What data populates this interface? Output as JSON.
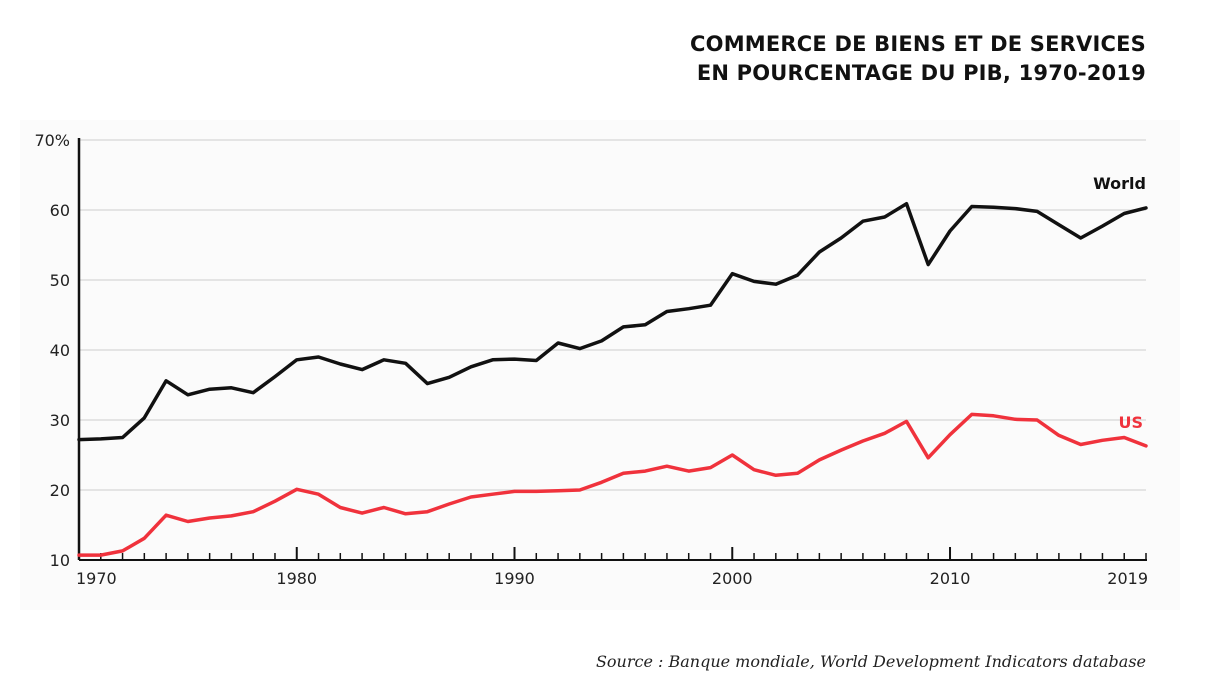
{
  "header": {
    "title_line1": "COMMERCE DE BIENS ET DE SERVICES",
    "title_line2": "EN POURCENTAGE DU PIB, 1970-2019"
  },
  "footer": {
    "source": "Source : Banque mondiale, World Development Indicators database"
  },
  "chart_data": {
    "type": "line",
    "title": "COMMERCE DE BIENS ET DE SERVICES EN POURCENTAGE DU PIB, 1970-2019",
    "xlabel": "",
    "ylabel": "",
    "xlim": [
      1970,
      2019
    ],
    "ylim": [
      10,
      70
    ],
    "grid": true,
    "x_tick_labels": [
      "1970",
      "1980",
      "1990",
      "2000",
      "2010",
      "2019"
    ],
    "x_ticks": [
      1970,
      1980,
      1990,
      2000,
      2010,
      2019
    ],
    "y_ticks": [
      10,
      20,
      30,
      40,
      50,
      60,
      70
    ],
    "y_tick_labels": [
      "10",
      "20",
      "30",
      "40",
      "50",
      "60",
      "70%"
    ],
    "x": [
      1970,
      1971,
      1972,
      1973,
      1974,
      1975,
      1976,
      1977,
      1978,
      1979,
      1980,
      1981,
      1982,
      1983,
      1984,
      1985,
      1986,
      1987,
      1988,
      1989,
      1990,
      1991,
      1992,
      1993,
      1994,
      1995,
      1996,
      1997,
      1998,
      1999,
      2000,
      2001,
      2002,
      2003,
      2004,
      2005,
      2006,
      2007,
      2008,
      2009,
      2010,
      2011,
      2012,
      2013,
      2014,
      2015,
      2016,
      2017,
      2018,
      2019
    ],
    "series": [
      {
        "name": "World",
        "color": "#111111",
        "values": [
          27.2,
          27.3,
          27.5,
          30.3,
          35.6,
          33.6,
          34.4,
          34.6,
          33.9,
          36.2,
          38.6,
          39.0,
          38.0,
          37.2,
          38.6,
          38.1,
          35.2,
          36.1,
          37.6,
          38.6,
          38.7,
          38.5,
          41.0,
          40.2,
          41.3,
          43.3,
          43.6,
          45.5,
          45.9,
          46.4,
          50.9,
          49.8,
          49.4,
          50.7,
          54.0,
          56.0,
          58.4,
          59.0,
          60.9,
          52.2,
          57.0,
          60.5,
          60.4,
          60.2,
          59.8,
          57.9,
          56.0,
          57.7,
          59.5,
          60.3
        ]
      },
      {
        "name": "US",
        "color": "#f0323c",
        "values": [
          10.7,
          10.7,
          11.3,
          13.1,
          16.4,
          15.5,
          16.0,
          16.3,
          16.9,
          18.4,
          20.1,
          19.4,
          17.5,
          16.7,
          17.5,
          16.6,
          16.9,
          18.0,
          19.0,
          19.4,
          19.8,
          19.8,
          19.9,
          20.0,
          21.1,
          22.4,
          22.7,
          23.4,
          22.7,
          23.2,
          25.0,
          22.9,
          22.1,
          22.4,
          24.3,
          25.7,
          27.0,
          28.1,
          29.8,
          24.6,
          27.9,
          30.8,
          30.6,
          30.1,
          30.0,
          27.8,
          26.5,
          27.1,
          27.5,
          26.3
        ]
      }
    ],
    "annotations": [
      {
        "text": "World",
        "series": "World"
      },
      {
        "text": "US",
        "series": "US"
      }
    ]
  }
}
